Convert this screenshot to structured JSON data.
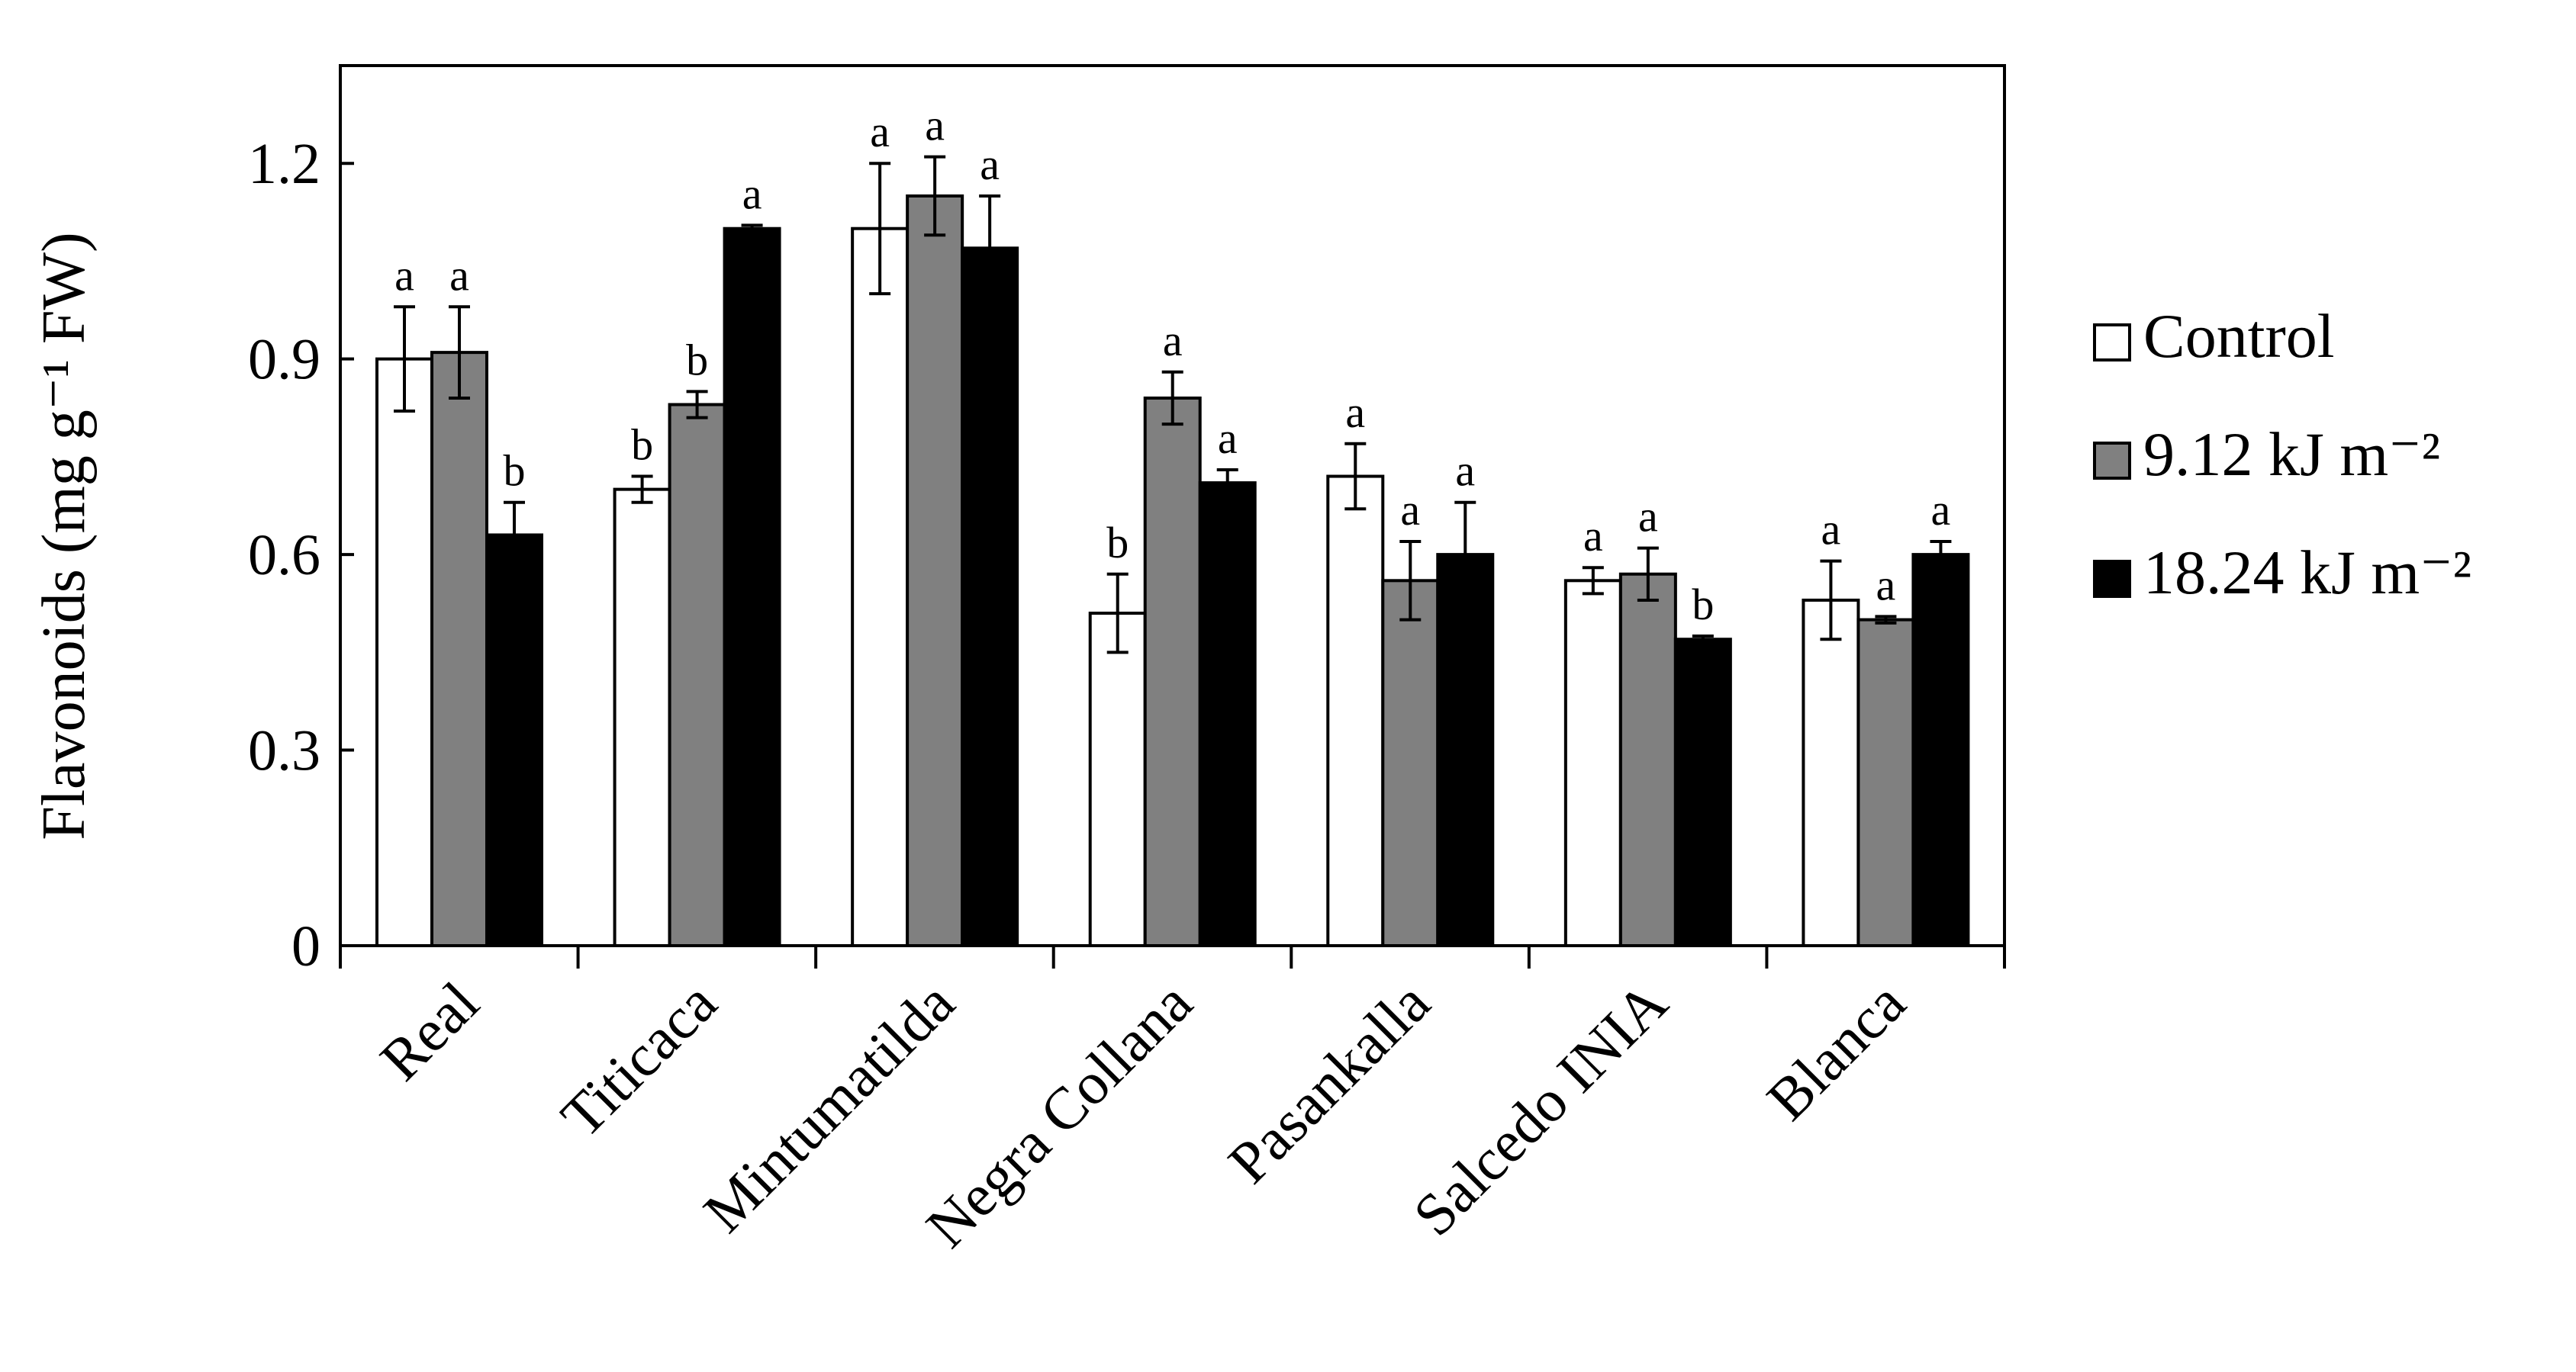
{
  "chart_data": {
    "type": "bar",
    "title": "",
    "xlabel": "",
    "ylabel": "Flavonoids  (mg g⁻¹ FW)",
    "ylim": [
      0,
      1.35
    ],
    "yticks": [
      0,
      0.3,
      0.6,
      0.9,
      1.2
    ],
    "ytick_labels": [
      "0",
      "0.3",
      "0.6",
      "0.9",
      "1.2"
    ],
    "grid": false,
    "legend_position": "right",
    "categories": [
      "Real",
      "Titicaca",
      "Mintumatilda",
      "Negra Collana",
      "Pasankalla",
      "Salcedo INIA",
      "Blanca"
    ],
    "series": [
      {
        "name": "Control",
        "color": "#ffffff",
        "values": [
          0.9,
          0.7,
          1.1,
          0.51,
          0.72,
          0.56,
          0.53
        ],
        "errors": [
          0.08,
          0.02,
          0.1,
          0.06,
          0.05,
          0.02,
          0.06
        ],
        "letters": [
          "a",
          "b",
          "a",
          "b",
          "a",
          "a",
          "a"
        ]
      },
      {
        "name": "9.12 kJ m⁻²",
        "color": "#808080",
        "values": [
          0.91,
          0.83,
          1.15,
          0.84,
          0.56,
          0.57,
          0.5
        ],
        "errors": [
          0.07,
          0.02,
          0.06,
          0.04,
          0.06,
          0.04,
          0.005
        ],
        "letters": [
          "a",
          "b",
          "a",
          "a",
          "a",
          "a",
          "a"
        ]
      },
      {
        "name": "18.24 kJ m⁻²",
        "color": "#000000",
        "values": [
          0.63,
          1.1,
          1.07,
          0.71,
          0.6,
          0.47,
          0.6
        ],
        "errors": [
          0.05,
          0.005,
          0.08,
          0.02,
          0.08,
          0.005,
          0.02
        ],
        "letters": [
          "b",
          "a",
          "a",
          "a",
          "a",
          "b",
          "a"
        ]
      }
    ]
  }
}
